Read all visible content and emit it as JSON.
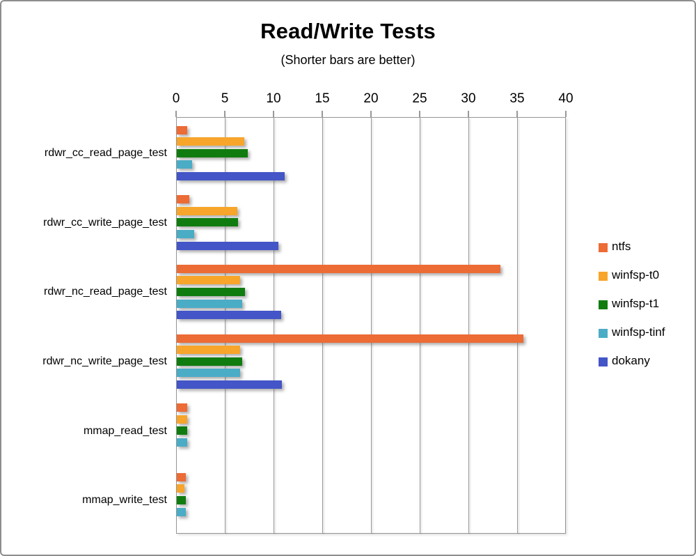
{
  "chart_data": {
    "type": "bar",
    "orientation": "horizontal",
    "title": "Read/Write Tests",
    "subtitle": "(Shorter bars are better)",
    "x_axis": {
      "position": "top",
      "min": 0,
      "max": 40,
      "ticks": [
        0,
        5,
        10,
        15,
        20,
        25,
        30,
        35,
        40
      ],
      "grid": true
    },
    "legend_position": "right",
    "categories": [
      "rdwr_cc_read_page_test",
      "rdwr_cc_write_page_test",
      "rdwr_nc_read_page_test",
      "rdwr_nc_write_page_test",
      "mmap_read_test",
      "mmap_write_test"
    ],
    "series": [
      {
        "name": "ntfs",
        "color": "#ED6B35",
        "values": [
          1.1,
          1.3,
          33.2,
          35.6,
          1.1,
          0.9
        ]
      },
      {
        "name": "winfsp-t0",
        "color": "#F7A52B",
        "values": [
          6.9,
          6.2,
          6.5,
          6.5,
          1.1,
          0.8
        ]
      },
      {
        "name": "winfsp-t1",
        "color": "#107C10",
        "values": [
          7.3,
          6.3,
          7.0,
          6.7,
          1.1,
          0.9
        ]
      },
      {
        "name": "winfsp-tinf",
        "color": "#4BACC6",
        "values": [
          1.6,
          1.8,
          6.7,
          6.5,
          1.1,
          0.9
        ]
      },
      {
        "name": "dokany",
        "color": "#4355C7",
        "values": [
          11.1,
          10.4,
          10.7,
          10.8,
          0,
          0
        ]
      }
    ],
    "colors": {
      "grid": "#989898",
      "plot_border": "#959595",
      "text": "#000000"
    }
  }
}
